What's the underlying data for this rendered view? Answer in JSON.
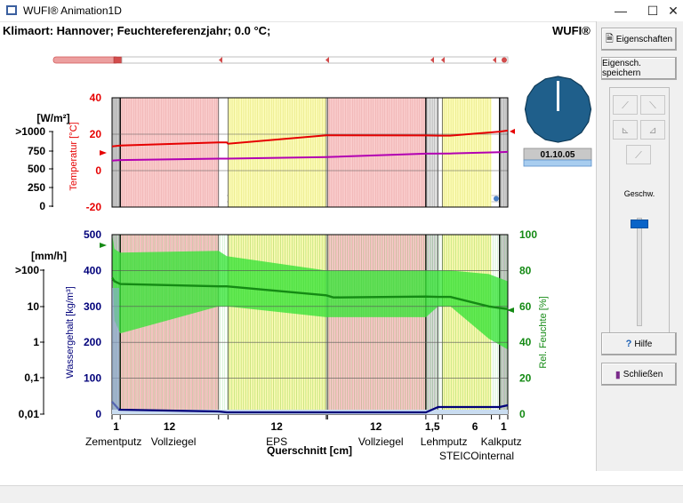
{
  "window": {
    "title": "WUFI® Animation1D",
    "min_glyph": "—",
    "max_glyph": "☐",
    "close_glyph": "✕"
  },
  "header": {
    "klima": "Klimaort: Hannover; Feuchtereferenzjahr; 0.0 °C;",
    "brand": "WUFI®"
  },
  "right_panel": {
    "properties_label": "Eigenschaften",
    "save_properties_label": "Eigensch. speichern",
    "speed_label": "Geschw.",
    "help_label": "Hilfe",
    "close_label": "Schließen",
    "speed_level": 0.82
  },
  "clock": {
    "date": "01.10.05"
  },
  "upper_chart": {
    "left_unit": "[W/m²]",
    "left_ticks": [
      ">1000",
      "750",
      "500",
      "250",
      "0"
    ],
    "axis_label": "Temperatur [°C]",
    "temp_ticks": [
      40,
      20,
      0,
      -20
    ],
    "temp_range": [
      -20,
      40
    ],
    "temperature_series": [
      [
        0,
        13.3
      ],
      [
        1,
        13.8
      ],
      [
        13,
        15.5
      ],
      [
        14,
        15.5
      ],
      [
        14.15,
        14.8
      ],
      [
        26.15,
        19.4
      ],
      [
        26.3,
        19.4
      ],
      [
        38.3,
        19.3
      ],
      [
        39.8,
        19.2
      ],
      [
        41.3,
        19.2
      ],
      [
        47.3,
        21.4
      ],
      [
        48.3,
        22.0
      ]
    ],
    "second_series": [
      [
        0,
        5.5
      ],
      [
        1,
        5.8
      ],
      [
        13,
        6.6
      ],
      [
        14,
        6.6
      ],
      [
        26.15,
        7.4
      ],
      [
        38.3,
        9.3
      ],
      [
        41.3,
        9.4
      ],
      [
        47.3,
        10.1
      ],
      [
        48.3,
        10.3
      ]
    ]
  },
  "lower_chart": {
    "left_unit": "[mm/h]",
    "left_ticks": [
      ">100",
      "10",
      "1",
      "0,1",
      "0,01"
    ],
    "left_axis_label": "Wassergehalt [kg/m³]",
    "right_axis_label": "Rel. Feuchte [%]",
    "wc_ticks": [
      500,
      400,
      300,
      200,
      100,
      0
    ],
    "rh_ticks": [
      100,
      80,
      60,
      40,
      20,
      0
    ],
    "rh_range": [
      0,
      100
    ],
    "rh_series": [
      [
        0,
        76.0
      ],
      [
        0.3,
        74.0
      ],
      [
        1,
        72.5
      ],
      [
        13,
        71.2
      ],
      [
        14,
        71.2
      ],
      [
        26.15,
        66.2
      ],
      [
        27,
        65.0
      ],
      [
        38.3,
        65.5
      ],
      [
        39.8,
        65.3
      ],
      [
        41.3,
        65.3
      ],
      [
        46,
        60.0
      ],
      [
        48.3,
        58.5
      ]
    ]
  },
  "x_axis": {
    "title": "Querschnitt [cm]",
    "ticks": [
      {
        "label": "1",
        "pos": 0.5
      },
      {
        "label": "12",
        "pos": 7
      },
      {
        "label": "12",
        "pos": 20.1
      },
      {
        "label": "12",
        "pos": 32.2
      },
      {
        "label": "1,5",
        "pos": 39.1
      },
      {
        "label": "6",
        "pos": 44.3
      },
      {
        "label": "1",
        "pos": 47.8
      }
    ],
    "layer_names": [
      {
        "name": "Zementputz",
        "pos": 0.3
      },
      {
        "name": "Vollziegel",
        "pos": 7.5
      },
      {
        "name": "EPS",
        "pos": 20.1
      },
      {
        "name": "Vollziegel",
        "pos": 32.8
      },
      {
        "name": "Lehmputz",
        "pos": 40.5
      },
      {
        "name": "Kalkputz",
        "pos": 47.5
      }
    ],
    "layer_names_row2": [
      {
        "name": "STEICOinternal",
        "pos": 44.5
      }
    ]
  },
  "layers": [
    {
      "name": "Zementputz",
      "start": 0,
      "end": 1,
      "fill": "#c8c8c8"
    },
    {
      "name": "Vollziegel",
      "start": 1,
      "end": 13,
      "fill": "#f9cbcb"
    },
    {
      "name": "gap",
      "start": 13,
      "end": 14,
      "fill": "#ffffff"
    },
    {
      "name": "EPS",
      "start": 14.15,
      "end": 26.15,
      "fill": "#fbfbb8"
    },
    {
      "name": "gap",
      "start": 26.15,
      "end": 26.3,
      "fill": "#ffffff"
    },
    {
      "name": "Vollziegel",
      "start": 26.3,
      "end": 38.3,
      "fill": "#f9cbcb"
    },
    {
      "name": "Lehmputz",
      "start": 38.3,
      "end": 39.8,
      "fill": "#e0e0e0"
    },
    {
      "name": "gap",
      "start": 39.8,
      "end": 40.3,
      "fill": "#ffffff"
    },
    {
      "name": "STEICOinternal",
      "start": 40.3,
      "end": 46.3,
      "fill": "#fbfbb8"
    },
    {
      "name": "Kalkputz",
      "start": 47.3,
      "end": 48.3,
      "fill": "#d0d0d0"
    }
  ],
  "colors": {
    "temp": "#e60000",
    "second": "#b200b2",
    "rh": "#148a14",
    "rh_band": "#39e639",
    "wc": "#00007a",
    "accent_blue": "#1565a8"
  }
}
